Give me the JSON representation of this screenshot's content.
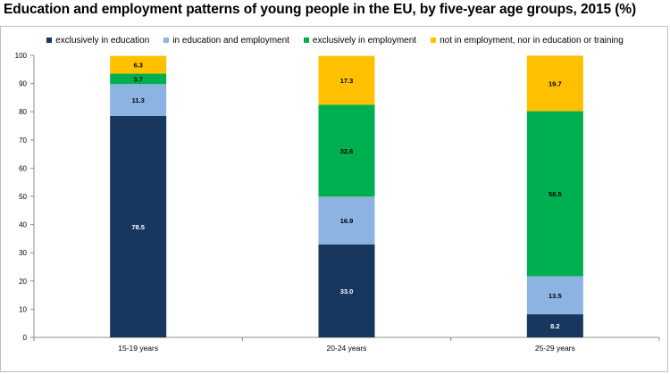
{
  "chart_data": {
    "type": "bar",
    "stacked": true,
    "title": "Education and employment patterns of young people in the EU, by five-year age groups, 2015 (%)",
    "categories": [
      "15-19 years",
      "20-24 years",
      "25-29 years"
    ],
    "series": [
      {
        "name": "exclusively in education",
        "color": "#17375e",
        "label_color": "#ffffff",
        "values": [
          78.5,
          33.0,
          8.2
        ]
      },
      {
        "name": "in education and employment",
        "color": "#8db3e2",
        "label_color": "#000000",
        "values": [
          11.3,
          16.9,
          13.5
        ]
      },
      {
        "name": "exclusively in employment",
        "color": "#00b050",
        "label_color": "#000000",
        "values": [
          3.7,
          32.6,
          58.5
        ]
      },
      {
        "name": "not in employment, nor in education or training",
        "color": "#ffc000",
        "label_color": "#000000",
        "values": [
          6.3,
          17.3,
          19.7
        ]
      }
    ],
    "data_labels": [
      [
        "78.5",
        "33.0",
        "8.2"
      ],
      [
        "11.3",
        "16.9",
        "13.5"
      ],
      [
        "3.7",
        "32.6",
        "58.5"
      ],
      [
        "6.3",
        "17.3",
        "19.7"
      ]
    ],
    "ylim": [
      0,
      100
    ],
    "yticks": [
      0,
      10,
      20,
      30,
      40,
      50,
      60,
      70,
      80,
      90,
      100
    ],
    "xlabel": "",
    "ylabel": "",
    "grid": false,
    "legend": "top"
  }
}
